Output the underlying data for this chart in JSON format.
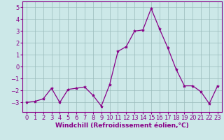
{
  "x": [
    0,
    1,
    2,
    3,
    4,
    5,
    6,
    7,
    8,
    9,
    10,
    11,
    12,
    13,
    14,
    15,
    16,
    17,
    18,
    19,
    20,
    21,
    22,
    23
  ],
  "y": [
    -3.0,
    -2.9,
    -2.7,
    -1.8,
    -3.0,
    -1.9,
    -1.8,
    -1.7,
    -2.4,
    -3.3,
    -1.5,
    1.3,
    1.7,
    3.0,
    3.1,
    4.9,
    3.2,
    1.6,
    -0.2,
    -1.6,
    -1.6,
    -2.1,
    -3.1,
    -1.6
  ],
  "line_color": "#880088",
  "marker": "*",
  "marker_size": 3,
  "bg_color": "#cce8e8",
  "grid_color": "#99bbbb",
  "xlabel": "Windchill (Refroidissement éolien,°C)",
  "xlabel_fontsize": 6.5,
  "ylim": [
    -3.8,
    5.5
  ],
  "xlim": [
    -0.5,
    23.5
  ],
  "yticks": [
    -3,
    -2,
    -1,
    0,
    1,
    2,
    3,
    4,
    5
  ],
  "xticks": [
    0,
    1,
    2,
    3,
    4,
    5,
    6,
    7,
    8,
    9,
    10,
    11,
    12,
    13,
    14,
    15,
    16,
    17,
    18,
    19,
    20,
    21,
    22,
    23
  ],
  "tick_fontsize": 6,
  "label_color": "#880088",
  "spine_color": "#880088",
  "linewidth": 0.9
}
